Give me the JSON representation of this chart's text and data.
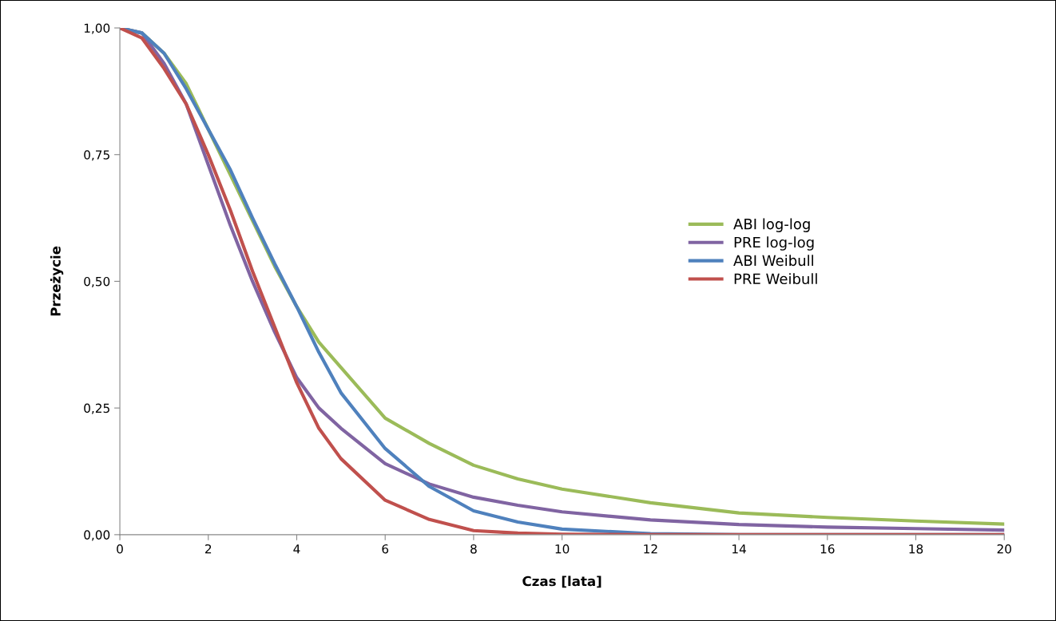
{
  "chart_data": {
    "type": "line",
    "xlabel": "Czas [lata]",
    "ylabel": "Przeżycie",
    "x": [
      0,
      0.5,
      1,
      1.5,
      2,
      2.5,
      3,
      3.5,
      4,
      4.5,
      5,
      6,
      7,
      8,
      9,
      10,
      12,
      14,
      16,
      18,
      20
    ],
    "series": [
      {
        "name": "ABI log-log",
        "color": "#9bbb59",
        "values": [
          1,
          0.99,
          0.95,
          0.89,
          0.8,
          0.71,
          0.62,
          0.53,
          0.45,
          0.38,
          0.33,
          0.23,
          0.18,
          0.137,
          0.11,
          0.09,
          0.063,
          0.043,
          0.034,
          0.027,
          0.021
        ]
      },
      {
        "name": "PRE log-log",
        "color": "#8064a2",
        "values": [
          1,
          0.99,
          0.93,
          0.85,
          0.73,
          0.61,
          0.5,
          0.4,
          0.31,
          0.25,
          0.21,
          0.14,
          0.1,
          0.074,
          0.058,
          0.045,
          0.029,
          0.02,
          0.015,
          0.012,
          0.009
        ]
      },
      {
        "name": "ABI Weibull",
        "color": "#4f81bd",
        "values": [
          1,
          0.99,
          0.95,
          0.88,
          0.8,
          0.72,
          0.625,
          0.535,
          0.45,
          0.36,
          0.28,
          0.17,
          0.095,
          0.047,
          0.025,
          0.011,
          0.002,
          0,
          0,
          0,
          0
        ]
      },
      {
        "name": "PRE Weibull",
        "color": "#c0504d",
        "values": [
          1,
          0.98,
          0.92,
          0.85,
          0.75,
          0.64,
          0.52,
          0.41,
          0.3,
          0.21,
          0.15,
          0.068,
          0.03,
          0.008,
          0.003,
          0.001,
          0,
          0,
          0,
          0,
          0
        ]
      }
    ],
    "xlim": [
      0,
      20
    ],
    "xticks": [
      0,
      2,
      4,
      6,
      8,
      10,
      12,
      14,
      16,
      18,
      20
    ],
    "ylim": [
      0,
      1
    ],
    "yticks": [
      {
        "value": 0,
        "label": "0,00"
      },
      {
        "value": 0.25,
        "label": "0,25"
      },
      {
        "value": 0.5,
        "label": "0,50"
      },
      {
        "value": 0.75,
        "label": "0,75"
      },
      {
        "value": 1,
        "label": "1,00"
      }
    ],
    "grid": false,
    "legend": "right",
    "marker": "none",
    "line_style": "solid"
  }
}
